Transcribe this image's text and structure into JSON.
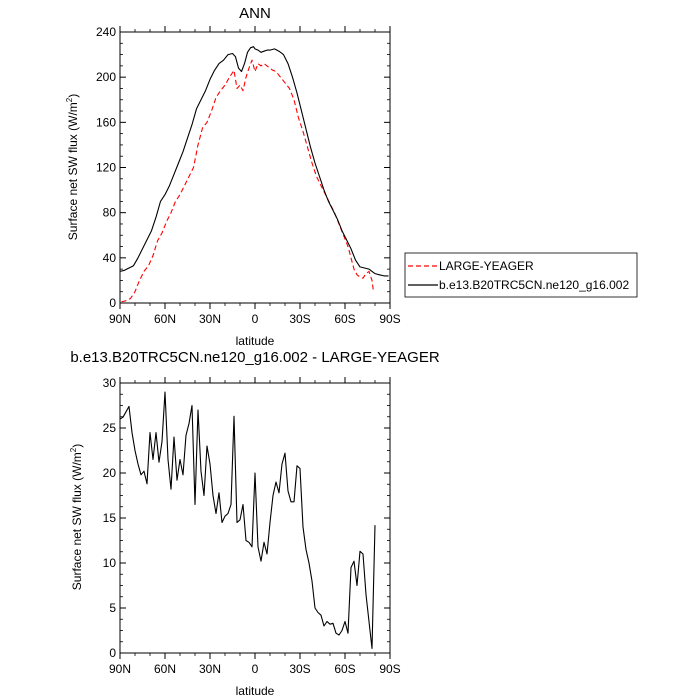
{
  "chart_data": [
    {
      "type": "line",
      "title": "ANN",
      "xlabel": "latitude",
      "ylabel": "Surface net SW flux (W/m",
      "ylabel_sup": "2",
      "ylabel_end": ")",
      "xlim": [
        90,
        -90
      ],
      "ylim": [
        0,
        240
      ],
      "x_tick_values": [
        90,
        60,
        30,
        0,
        -30,
        -60,
        -90
      ],
      "x_tick_labels": [
        "90N",
        "60N",
        "30N",
        "0",
        "30S",
        "60S",
        "90S"
      ],
      "y_tick_values": [
        0,
        40,
        80,
        120,
        160,
        200,
        240
      ],
      "y_tick_labels": [
        "0",
        "40",
        "80",
        "120",
        "160",
        "200",
        "240"
      ],
      "legend": {
        "position": "right"
      },
      "series": [
        {
          "name": "LARGE-YEAGER",
          "color": "#ff0000",
          "dash": "dashed",
          "x": [
            89,
            86,
            83,
            80,
            77,
            74,
            71,
            68,
            65,
            62,
            59,
            56,
            53,
            50,
            47,
            44,
            41,
            38,
            35,
            32,
            29,
            26,
            23,
            20,
            17,
            14,
            12,
            10,
            8,
            6,
            4,
            2,
            0,
            -2,
            -4,
            -6,
            -8,
            -10,
            -12,
            -14,
            -17,
            -20,
            -23,
            -26,
            -29,
            -32,
            -35,
            -38,
            -41,
            -44,
            -47,
            -50,
            -53,
            -56,
            -59,
            -62,
            -64,
            -66,
            -68,
            -70,
            -72,
            -74,
            -76,
            -78,
            -79
          ],
          "y": [
            1,
            2,
            4,
            10,
            20,
            28,
            33,
            42,
            55,
            62,
            72,
            80,
            90,
            96,
            104,
            112,
            120,
            140,
            155,
            160,
            170,
            182,
            188,
            193,
            200,
            206,
            190,
            193,
            188,
            200,
            208,
            215,
            205,
            212,
            210,
            212,
            210,
            208,
            206,
            205,
            200,
            195,
            190,
            180,
            164,
            152,
            138,
            124,
            112,
            104,
            96,
            88,
            80,
            70,
            60,
            50,
            40,
            30,
            25,
            23,
            22,
            26,
            28,
            20,
            10
          ]
        },
        {
          "name": "b.e13.B20TRC5CN.ne120_g16.002",
          "color": "#000000",
          "dash": "solid",
          "x": [
            90,
            87,
            84,
            81,
            78,
            75,
            72,
            69,
            66,
            63,
            60,
            57,
            54,
            51,
            48,
            45,
            42,
            39,
            36,
            33,
            30,
            27,
            24,
            21,
            18,
            15,
            13,
            11,
            9,
            7,
            5,
            3,
            1,
            0,
            -2,
            -4,
            -6,
            -8,
            -10,
            -13,
            -16,
            -19,
            -22,
            -25,
            -28,
            -31,
            -34,
            -37,
            -40,
            -43,
            -46,
            -49,
            -52,
            -55,
            -58,
            -61,
            -64,
            -67,
            -70,
            -73,
            -76,
            -78,
            -80,
            -83,
            -86,
            -89
          ],
          "y": [
            28,
            29,
            31,
            33,
            40,
            48,
            56,
            64,
            76,
            90,
            96,
            104,
            114,
            124,
            134,
            146,
            158,
            172,
            180,
            188,
            198,
            206,
            212,
            215,
            220,
            221,
            218,
            208,
            205,
            212,
            222,
            226,
            227,
            225,
            224,
            222,
            223,
            224,
            224,
            225,
            223,
            220,
            212,
            200,
            186,
            170,
            154,
            138,
            124,
            112,
            100,
            90,
            82,
            74,
            64,
            56,
            48,
            38,
            32,
            31,
            30,
            28,
            26,
            25,
            24,
            24
          ]
        }
      ]
    },
    {
      "type": "line",
      "title": "b.e13.B20TRC5CN.ne120_g16.002 - LARGE-YEAGER",
      "xlabel": "latitude",
      "ylabel": "Surface net SW flux (W/m",
      "ylabel_sup": "2",
      "ylabel_end": ")",
      "xlim": [
        90,
        -90
      ],
      "ylim": [
        0,
        30
      ],
      "x_tick_values": [
        90,
        60,
        30,
        0,
        -30,
        -60,
        -90
      ],
      "x_tick_labels": [
        "90N",
        "60N",
        "30N",
        "0",
        "30S",
        "60S",
        "90S"
      ],
      "y_tick_values": [
        0,
        5,
        10,
        15,
        20,
        25,
        30
      ],
      "y_tick_labels": [
        "0",
        "5",
        "10",
        "15",
        "20",
        "25",
        "30"
      ],
      "series": [
        {
          "color": "#000000",
          "dash": "solid",
          "x": [
            90,
            88,
            86,
            84,
            82,
            80,
            78,
            76,
            74,
            72,
            70,
            68,
            66,
            64,
            62,
            60,
            58,
            56,
            54,
            52,
            50,
            48,
            46,
            44,
            42,
            40,
            38,
            36,
            34,
            32,
            30,
            28,
            26,
            24,
            22,
            20,
            18,
            16,
            14,
            12,
            10,
            8,
            6,
            4,
            2,
            0,
            -2,
            -4,
            -6,
            -8,
            -10,
            -12,
            -14,
            -16,
            -18,
            -20,
            -22,
            -24,
            -26,
            -28,
            -30,
            -32,
            -34,
            -36,
            -38,
            -40,
            -42,
            -44,
            -46,
            -48,
            -50,
            -52,
            -54,
            -56,
            -58,
            -60,
            -62,
            -64,
            -66,
            -68,
            -70,
            -72,
            -74,
            -76,
            -78,
            -80
          ],
          "y": [
            26,
            26.2,
            26.8,
            27.4,
            24.5,
            22.5,
            21,
            19.8,
            20.2,
            18.8,
            24.5,
            21.5,
            24.5,
            21.2,
            23.5,
            29,
            21.5,
            18.2,
            24,
            19.2,
            21.5,
            19.8,
            24.2,
            25.5,
            27.5,
            16.5,
            27,
            20.2,
            17.5,
            23,
            21,
            17.5,
            15.5,
            17.8,
            14.5,
            15.2,
            15.5,
            16.5,
            26.3,
            14.5,
            14.8,
            16.5,
            12.5,
            12.3,
            11.8,
            20,
            11.8,
            10.2,
            12.3,
            11,
            14.5,
            17.5,
            19,
            17.8,
            21,
            22.2,
            18,
            16.8,
            16.8,
            20.8,
            20.5,
            14,
            11.5,
            10,
            8,
            5,
            4.5,
            4.2,
            3,
            3.5,
            3.2,
            3.3,
            2.2,
            2,
            2.5,
            3.5,
            2.2,
            9.5,
            10.2,
            7.5,
            11.3,
            11,
            6.5,
            3.5,
            0.5,
            14.2
          ]
        }
      ]
    }
  ]
}
